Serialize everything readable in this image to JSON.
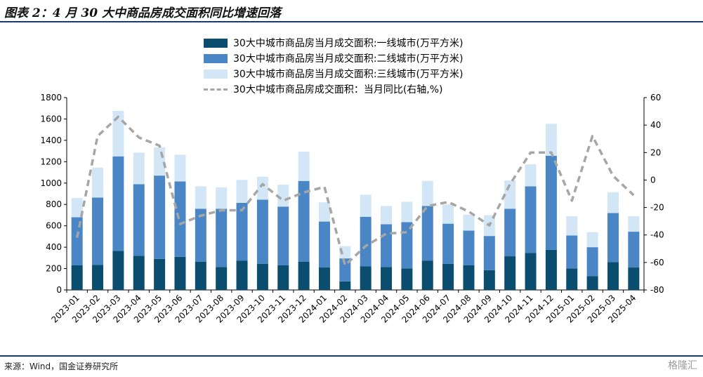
{
  "header": {
    "title": "图表 2：4 月 30 大中商品房成交面积同比增速回落"
  },
  "footer": {
    "source": "来源：Wind，国金证券研究所",
    "watermark": "格隆汇"
  },
  "colors": {
    "tier1": "#0b4d6e",
    "tier2": "#4a86c5",
    "tier3": "#d3e6f6",
    "yoy": "#a6a6a6",
    "rule": "#1b3a6b"
  },
  "chart_data": {
    "type": "bar",
    "stacked": true,
    "categories": [
      "2023-01",
      "2023-02",
      "2023-03",
      "2023-04",
      "2023-05",
      "2023-06",
      "2023-07",
      "2023-08",
      "2023-09",
      "2023-10",
      "2023-11",
      "2023-12",
      "2024-01",
      "2024-02",
      "2024-03",
      "2024-04",
      "2024-05",
      "2024-06",
      "2024-07",
      "2024-08",
      "2024-09",
      "2024-10",
      "2024-11",
      "2024-12",
      "2025-01",
      "2025-02",
      "2025-03",
      "2025-04"
    ],
    "series": [
      {
        "name": "30大中城市商品房当月成交面积:一线城市(万平方米)",
        "type": "bar",
        "axis": "left",
        "values": [
          230,
          235,
          365,
          320,
          290,
          310,
          265,
          215,
          275,
          245,
          230,
          265,
          210,
          80,
          220,
          215,
          200,
          275,
          245,
          230,
          185,
          315,
          345,
          375,
          200,
          130,
          260,
          210
        ]
      },
      {
        "name": "30大中城市商品房当月成交面积:二线城市(万平方米)",
        "type": "bar",
        "axis": "left",
        "values": [
          450,
          630,
          885,
          670,
          780,
          705,
          495,
          545,
          540,
          600,
          550,
          755,
          430,
          215,
          465,
          400,
          435,
          510,
          375,
          325,
          320,
          445,
          625,
          880,
          310,
          270,
          460,
          335
        ]
      },
      {
        "name": "30大中城市商品房当月成交面积:三线城市(万平方米)",
        "type": "bar",
        "axis": "left",
        "values": [
          180,
          280,
          425,
          295,
          265,
          250,
          210,
          200,
          215,
          215,
          205,
          275,
          180,
          115,
          205,
          170,
          190,
          235,
          180,
          150,
          195,
          265,
          205,
          300,
          180,
          140,
          195,
          145
        ]
      },
      {
        "name": "30大中城市商品房成交面积：当月同比(右轴,%)",
        "type": "line",
        "axis": "right",
        "style": "dashed",
        "values": [
          -42,
          32,
          46,
          31,
          25,
          -32,
          -26,
          -22,
          -22,
          -3,
          -15,
          -9,
          -5,
          -62,
          -48,
          -39,
          -38,
          -19,
          -16,
          -23,
          -33,
          -3,
          20,
          20,
          -15,
          32,
          3,
          -11
        ]
      }
    ],
    "y_left": {
      "min": 0,
      "max": 1800,
      "ticks": [
        0,
        200,
        400,
        600,
        800,
        1000,
        1200,
        1400,
        1600,
        1800
      ]
    },
    "y_right": {
      "min": -80,
      "max": 60,
      "ticks": [
        -80,
        -60,
        -40,
        -20,
        0,
        20,
        40,
        60
      ]
    },
    "legend_position": "top-center",
    "grid": false
  }
}
